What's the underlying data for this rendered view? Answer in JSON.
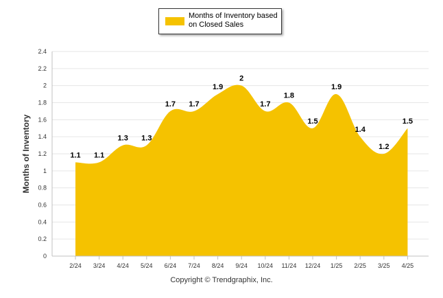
{
  "chart_data": {
    "type": "area",
    "categories": [
      "2/24",
      "3/24",
      "4/24",
      "5/24",
      "6/24",
      "7/24",
      "8/24",
      "9/24",
      "10/24",
      "11/24",
      "12/24",
      "1/25",
      "2/25",
      "3/25",
      "4/25"
    ],
    "series": [
      {
        "name": "Months of Inventory based on Closed Sales",
        "values": [
          1.1,
          1.1,
          1.3,
          1.3,
          1.7,
          1.7,
          1.9,
          2,
          1.7,
          1.8,
          1.5,
          1.9,
          1.4,
          1.2,
          1.5
        ],
        "data_labels": [
          "1.1",
          "1.1",
          "1.3",
          "1.3",
          "1.7",
          "1.7",
          "1.9",
          "2",
          "1.7",
          "1.8",
          "1.5",
          "1.9",
          "1.4",
          "1.2",
          "1.5"
        ],
        "color": "#F5C200"
      }
    ],
    "ylabel": "Months of Inventory",
    "xlabel": "",
    "ylim": [
      0,
      2.4
    ],
    "yticks": [
      "0",
      "0.2",
      "0.4",
      "0.6",
      "0.8",
      "1",
      "1.2",
      "1.4",
      "1.6",
      "1.8",
      "2",
      "2.2",
      "2.4"
    ],
    "grid": true,
    "legend_position": "top-center"
  },
  "footer": {
    "copyright": "Copyright © Trendgraphix, Inc."
  }
}
